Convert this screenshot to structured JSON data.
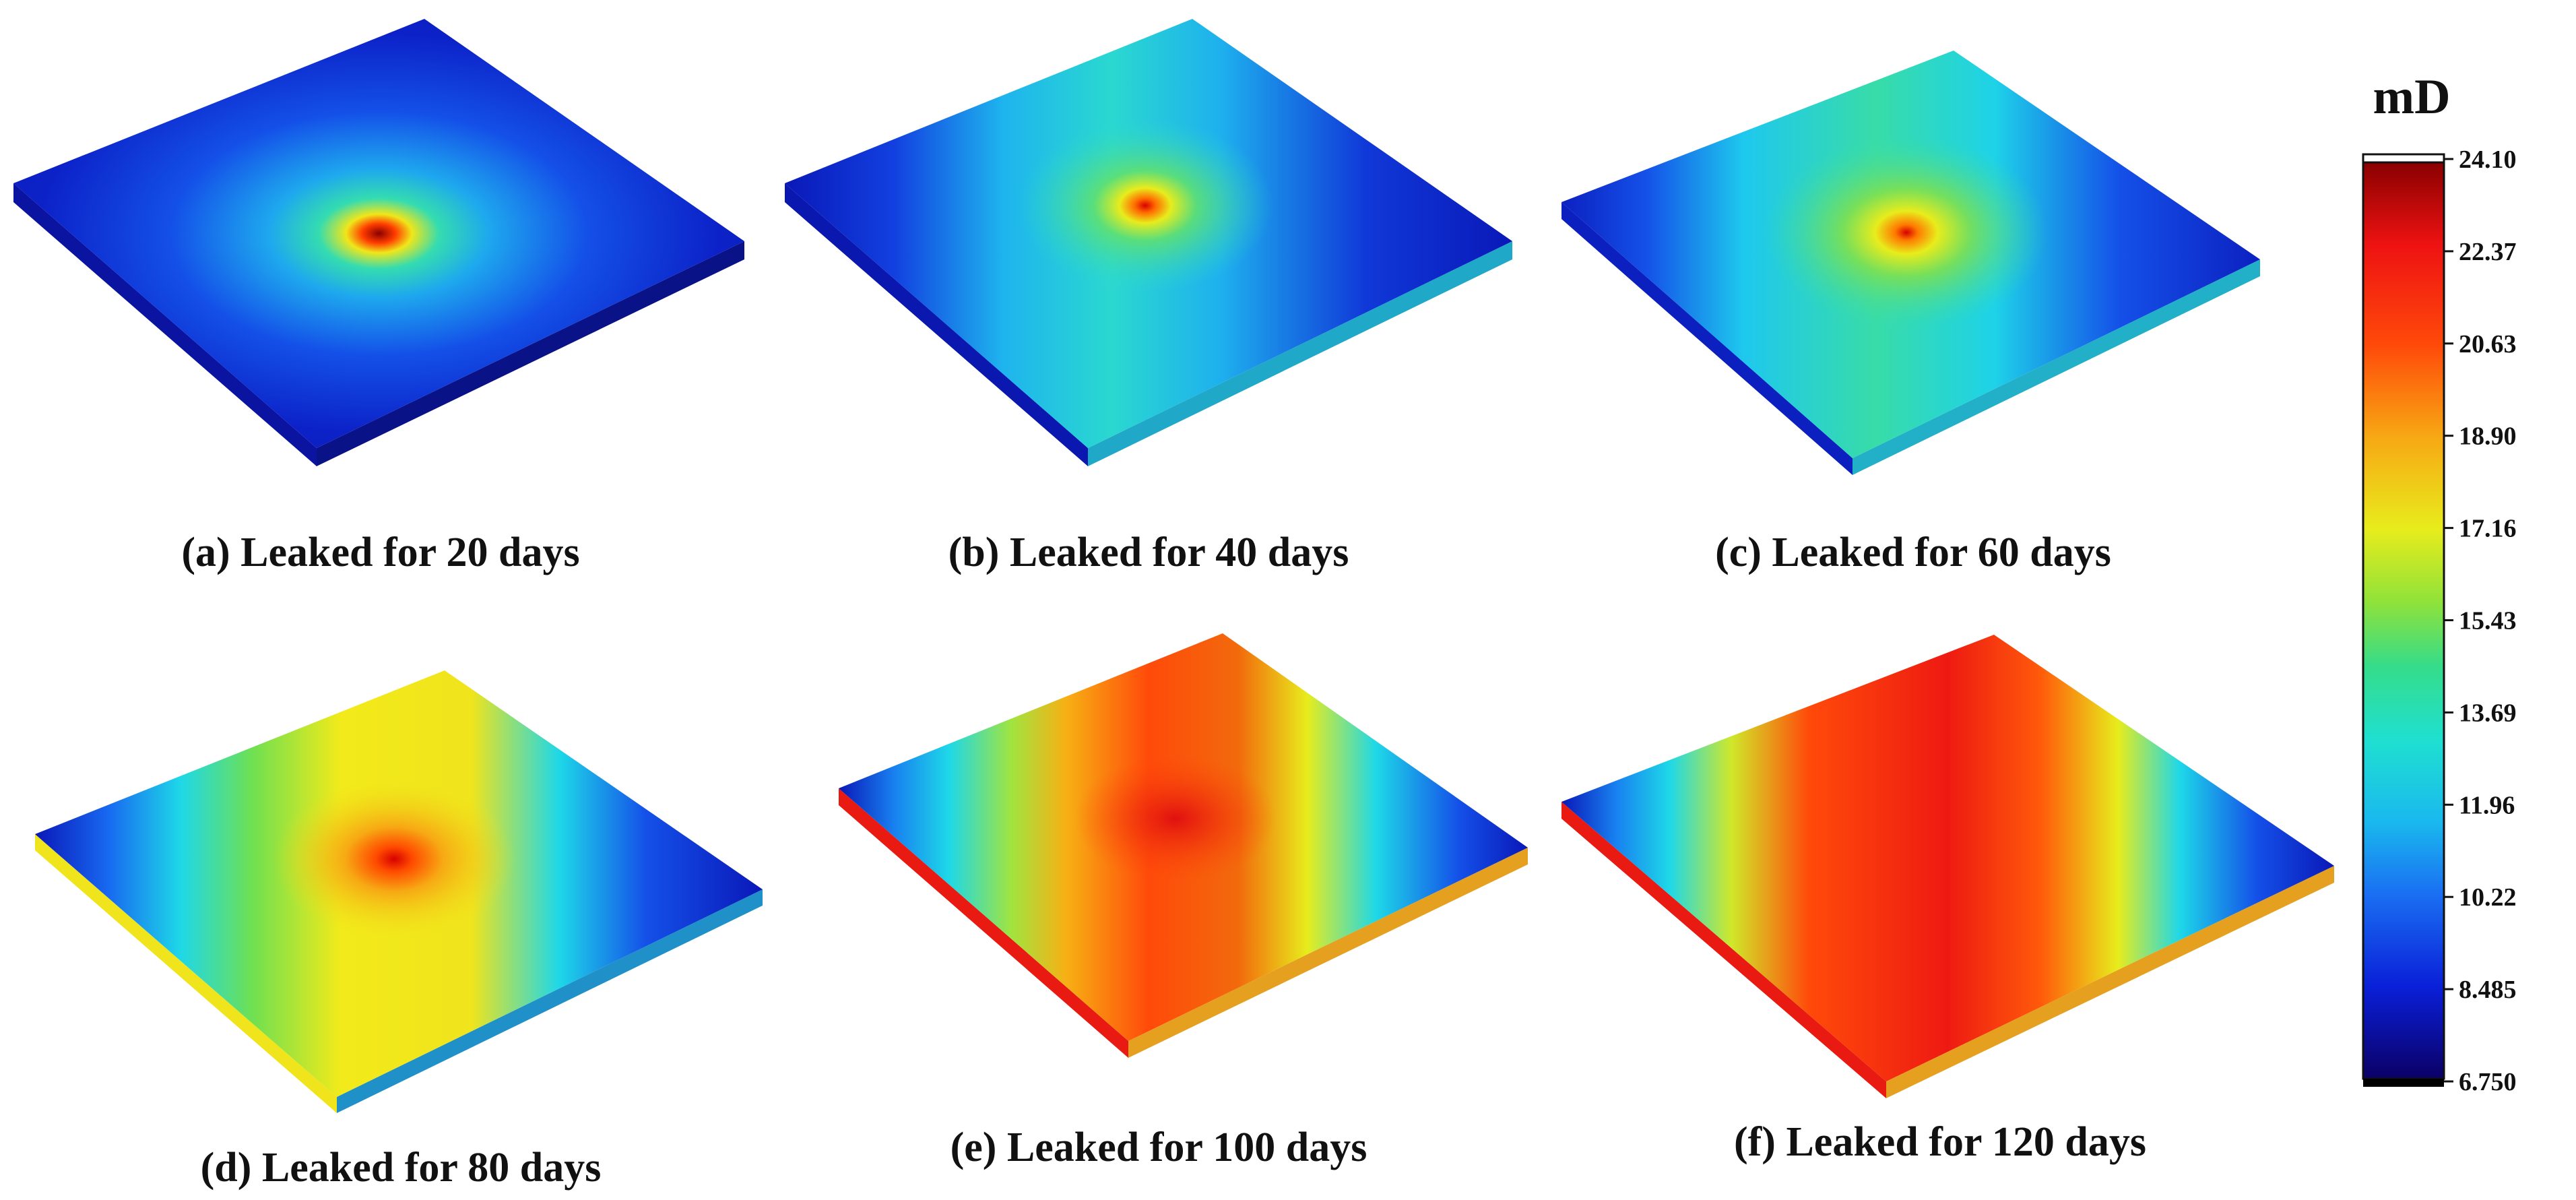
{
  "colorbar": {
    "unit": "mD",
    "ticks": [
      "24.10",
      "22.37",
      "20.63",
      "18.90",
      "17.16",
      "15.43",
      "13.69",
      "11.96",
      "10.22",
      "8.485",
      "6.750"
    ],
    "min": 6.75,
    "max": 24.1,
    "colors": [
      "#0b0066",
      "#0a1fd8",
      "#1a6ef2",
      "#1ec3ee",
      "#1fe0c2",
      "#35dc8a",
      "#8fe23a",
      "#e8ec1c",
      "#f7b214",
      "#ff5a0a",
      "#ee1212",
      "#8a0000"
    ]
  },
  "panels": [
    {
      "caption": "(a) Leaked for 20 days"
    },
    {
      "caption": "(b) Leaked for 40 days"
    },
    {
      "caption": "(c) Leaked for 60 days"
    },
    {
      "caption": "(d) Leaked for 80 days"
    },
    {
      "caption": "(e) Leaked for 100 days"
    },
    {
      "caption": "(f) Leaked for 120 days"
    }
  ]
}
